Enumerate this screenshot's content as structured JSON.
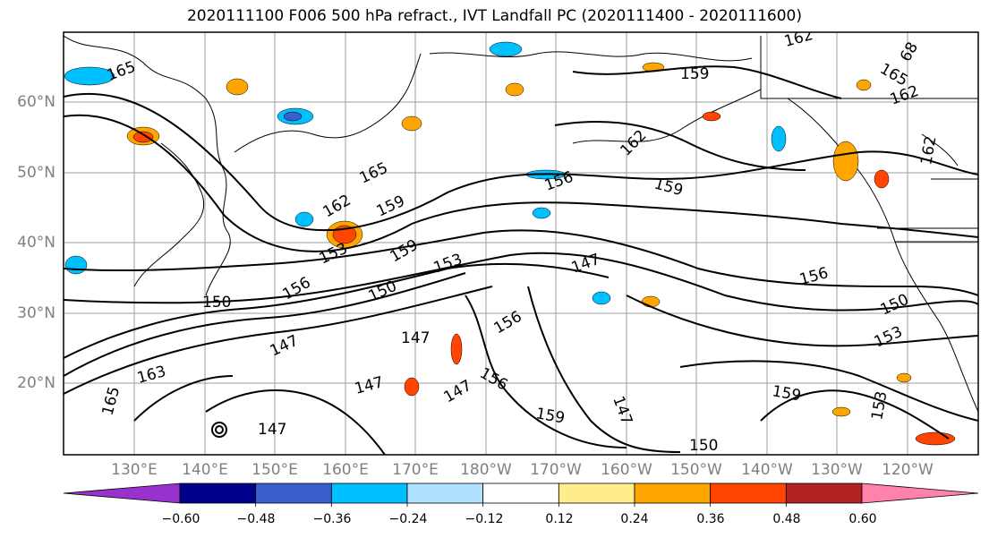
{
  "title": "2020111100 F006 500 hPa refract., IVT Landfall PC (2020111400 - 2020111600)",
  "lat_labels": [
    "60°N",
    "50°N",
    "40°N",
    "30°N",
    "20°N"
  ],
  "lon_labels": [
    "130°E",
    "140°E",
    "150°E",
    "160°E",
    "170°E",
    "180°W",
    "170°W",
    "160°W",
    "150°W",
    "140°W",
    "130°W",
    "120°W"
  ],
  "colorbar": {
    "colors": [
      "#9932cc",
      "#00008b",
      "#3a5fcd",
      "#00bfff",
      "#b0e2ff",
      "#ffffff",
      "#ffec8b",
      "#ffa500",
      "#ff4500",
      "#b22222",
      "#ff82ab"
    ],
    "tick_labels": [
      "−0.60",
      "−0.48",
      "−0.36",
      "−0.24",
      "−0.12",
      "0.12",
      "0.24",
      "0.36",
      "0.48",
      "0.60"
    ]
  },
  "contour_labels": [
    "165",
    "162",
    "159",
    "156",
    "153",
    "150",
    "147",
    "165",
    "162",
    "159",
    "156",
    "153",
    "150",
    "147",
    "147",
    "156",
    "156",
    "159",
    "147",
    "147",
    "163",
    "165",
    "147",
    "159",
    "150",
    "147",
    "153",
    "162",
    "165",
    "162",
    "159",
    "156",
    "159",
    "150",
    "153",
    "162",
    "68"
  ]
}
